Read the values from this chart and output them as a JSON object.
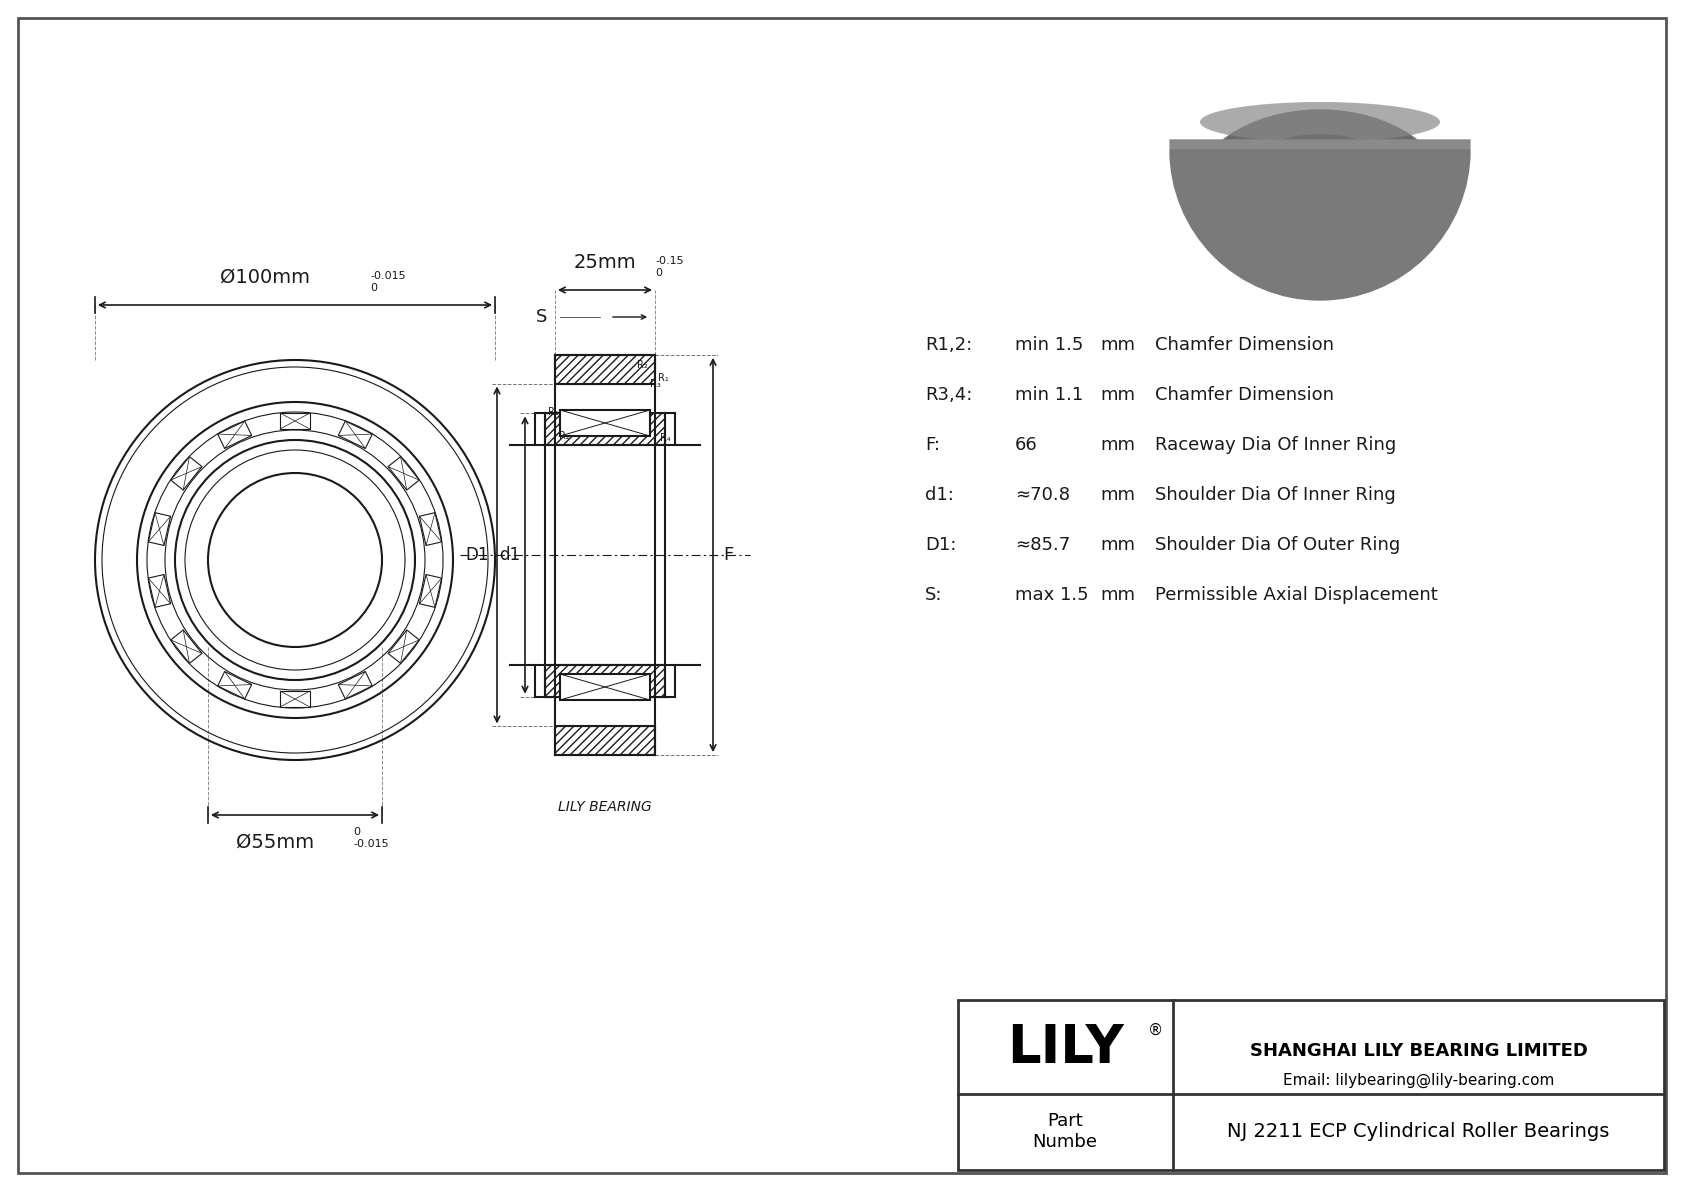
{
  "bg_color": "#ffffff",
  "border_color": "#333333",
  "line_color": "#1a1a1a",
  "title": "NJ 2211 ECP Cylindrical Roller Bearings",
  "company": "SHANGHAI LILY BEARING LIMITED",
  "email": "Email: lilybearing@lily-bearing.com",
  "part_label": "Part\nNumbe",
  "lily_logo": "LILY",
  "lily_bearing_label": "LILY BEARING",
  "dim_outer": "Ø100mm",
  "dim_outer_tol_top": "0",
  "dim_outer_tol_bot": "-0.015",
  "dim_inner": "Ø55mm",
  "dim_inner_tol_top": "0",
  "dim_inner_tol_bot": "-0.015",
  "dim_width": "25mm",
  "dim_width_tol_top": "0",
  "dim_width_tol_bot": "-0.15",
  "params": [
    {
      "symbol": "R1,2:",
      "value": "min 1.5",
      "unit": "mm",
      "desc": "Chamfer Dimension"
    },
    {
      "symbol": "R3,4:",
      "value": "min 1.1",
      "unit": "mm",
      "desc": "Chamfer Dimension"
    },
    {
      "symbol": "F:",
      "value": "66",
      "unit": "mm",
      "desc": "Raceway Dia Of Inner Ring"
    },
    {
      "symbol": "d1:",
      "value": "≈70.8",
      "unit": "mm",
      "desc": "Shoulder Dia Of Inner Ring"
    },
    {
      "symbol": "D1:",
      "value": "≈85.7",
      "unit": "mm",
      "desc": "Shoulder Dia Of Outer Ring"
    },
    {
      "symbol": "S:",
      "value": "max 1.5",
      "unit": "mm",
      "desc": "Permissible Axial Displacement"
    }
  ]
}
